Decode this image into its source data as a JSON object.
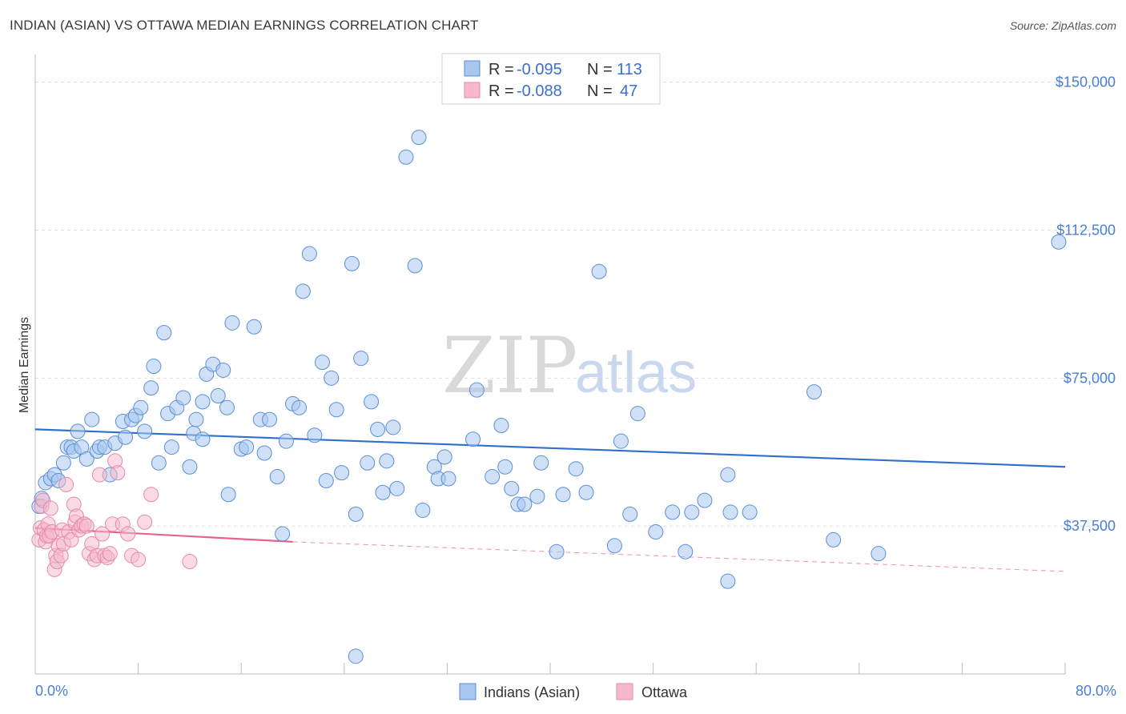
{
  "title": "INDIAN (ASIAN) VS OTTAWA MEDIAN EARNINGS CORRELATION CHART",
  "source": "Source: ZipAtlas.com",
  "watermark": {
    "zip": "ZIP",
    "atlas": "atlas"
  },
  "legend": {
    "r_label": "R =",
    "n_label": "N =",
    "rows": [
      {
        "r": "-0.095",
        "n": "113"
      },
      {
        "r": "-0.088",
        "n": "47"
      }
    ]
  },
  "bottom_legend": [
    "Indians (Asian)",
    "Ottawa"
  ],
  "colors": {
    "blue_fill": "#a8c6f0",
    "blue_stroke": "#5b8fd6",
    "blue_line": "#2f6fce",
    "pink_fill": "#f6b8cc",
    "pink_stroke": "#e58aa8",
    "pink_line": "#e8628e",
    "grid": "#dcdcdc",
    "axis_label": "#4a7fd4"
  },
  "chart_data": {
    "type": "scatter",
    "title": "INDIAN (ASIAN) VS OTTAWA MEDIAN EARNINGS CORRELATION CHART",
    "xlabel": "",
    "ylabel": "Median Earnings",
    "xlim": [
      0,
      80
    ],
    "ylim": [
      0,
      155000
    ],
    "x_tick_labels": [
      "0.0%",
      "80.0%"
    ],
    "y_ticks": [
      37500,
      75000,
      112500,
      150000
    ],
    "y_tick_labels": [
      "$37,500",
      "$75,000",
      "$112,500",
      "$150,000"
    ],
    "series": [
      {
        "name": "Indians (Asian)",
        "r": -0.095,
        "n": 113,
        "trend": {
          "x0": 0,
          "y0": 62000,
          "x1": 80,
          "y1": 52500
        },
        "points": [
          [
            0.3,
            42500
          ],
          [
            0.5,
            44500
          ],
          [
            0.8,
            48500
          ],
          [
            1.2,
            49500
          ],
          [
            1.5,
            50500
          ],
          [
            1.8,
            49000
          ],
          [
            2.2,
            53500
          ],
          [
            2.5,
            57500
          ],
          [
            2.8,
            57500
          ],
          [
            3.0,
            56500
          ],
          [
            3.3,
            61500
          ],
          [
            3.6,
            57500
          ],
          [
            4.0,
            54500
          ],
          [
            4.4,
            64500
          ],
          [
            4.8,
            56500
          ],
          [
            5.0,
            57500
          ],
          [
            5.4,
            57500
          ],
          [
            5.8,
            50500
          ],
          [
            6.2,
            58500
          ],
          [
            6.8,
            64000
          ],
          [
            7.0,
            60000
          ],
          [
            7.5,
            64500
          ],
          [
            7.8,
            65500
          ],
          [
            8.2,
            67500
          ],
          [
            8.5,
            61500
          ],
          [
            9.0,
            72500
          ],
          [
            9.2,
            78000
          ],
          [
            9.6,
            53500
          ],
          [
            10.0,
            86500
          ],
          [
            10.3,
            66000
          ],
          [
            10.6,
            57500
          ],
          [
            11.0,
            67500
          ],
          [
            11.5,
            70000
          ],
          [
            12.0,
            52500
          ],
          [
            12.3,
            61000
          ],
          [
            12.5,
            64500
          ],
          [
            13.0,
            69000
          ],
          [
            13.3,
            76000
          ],
          [
            13.8,
            78500
          ],
          [
            14.2,
            70500
          ],
          [
            14.6,
            77000
          ],
          [
            14.9,
            67500
          ],
          [
            15.3,
            89000
          ],
          [
            15.0,
            45500
          ],
          [
            16.0,
            57000
          ],
          [
            16.4,
            57500
          ],
          [
            17.0,
            88000
          ],
          [
            17.5,
            64500
          ],
          [
            17.8,
            56000
          ],
          [
            18.2,
            64500
          ],
          [
            18.8,
            50000
          ],
          [
            19.2,
            35500
          ],
          [
            19.5,
            59000
          ],
          [
            20.0,
            68500
          ],
          [
            20.5,
            67500
          ],
          [
            20.8,
            97000
          ],
          [
            21.3,
            106500
          ],
          [
            21.7,
            60500
          ],
          [
            22.3,
            79000
          ],
          [
            22.6,
            49000
          ],
          [
            23.0,
            75000
          ],
          [
            23.4,
            67000
          ],
          [
            23.8,
            51000
          ],
          [
            24.6,
            104000
          ],
          [
            24.9,
            40500
          ],
          [
            25.3,
            80000
          ],
          [
            25.8,
            53500
          ],
          [
            26.1,
            69000
          ],
          [
            26.6,
            62000
          ],
          [
            27.0,
            46000
          ],
          [
            27.3,
            54000
          ],
          [
            27.8,
            62500
          ],
          [
            28.1,
            47000
          ],
          [
            28.8,
            131000
          ],
          [
            29.5,
            103500
          ],
          [
            29.8,
            136000
          ],
          [
            30.1,
            41500
          ],
          [
            31.0,
            52500
          ],
          [
            31.3,
            49500
          ],
          [
            31.8,
            55000
          ],
          [
            32.1,
            49500
          ],
          [
            34.0,
            59500
          ],
          [
            34.3,
            72000
          ],
          [
            35.5,
            50000
          ],
          [
            36.2,
            63000
          ],
          [
            36.5,
            52500
          ],
          [
            37.0,
            47000
          ],
          [
            37.5,
            43000
          ],
          [
            38.0,
            43000
          ],
          [
            39.0,
            45000
          ],
          [
            39.3,
            53500
          ],
          [
            40.5,
            31000
          ],
          [
            41.0,
            45500
          ],
          [
            42.0,
            52000
          ],
          [
            42.8,
            46000
          ],
          [
            43.8,
            102000
          ],
          [
            45.0,
            32500
          ],
          [
            45.5,
            59000
          ],
          [
            46.2,
            40500
          ],
          [
            46.8,
            66000
          ],
          [
            48.2,
            36000
          ],
          [
            49.5,
            41000
          ],
          [
            50.5,
            31000
          ],
          [
            51.0,
            41000
          ],
          [
            52.0,
            44000
          ],
          [
            53.8,
            50500
          ],
          [
            53.8,
            23500
          ],
          [
            54.0,
            41000
          ],
          [
            55.5,
            41000
          ],
          [
            60.5,
            71500
          ],
          [
            62.0,
            34000
          ],
          [
            65.5,
            30500
          ],
          [
            79.5,
            109500
          ],
          [
            24.9,
            4500
          ],
          [
            13.0,
            59500
          ]
        ]
      },
      {
        "name": "Ottawa",
        "r": -0.088,
        "n": 47,
        "trend": {
          "x0": 0,
          "y0": 37000,
          "x1": 20,
          "y1": 33500,
          "dash_x1": 80,
          "dash_y1": 26000
        },
        "points": [
          [
            0.3,
            34000
          ],
          [
            0.4,
            37000
          ],
          [
            0.5,
            42500
          ],
          [
            0.6,
            44000
          ],
          [
            0.7,
            36500
          ],
          [
            0.8,
            33500
          ],
          [
            0.9,
            35000
          ],
          [
            1.0,
            38000
          ],
          [
            1.1,
            35000
          ],
          [
            1.2,
            42000
          ],
          [
            1.3,
            36000
          ],
          [
            1.5,
            26500
          ],
          [
            1.6,
            30000
          ],
          [
            1.7,
            28500
          ],
          [
            1.8,
            32500
          ],
          [
            2.0,
            30000
          ],
          [
            2.1,
            36500
          ],
          [
            2.2,
            33000
          ],
          [
            2.4,
            48000
          ],
          [
            2.6,
            36000
          ],
          [
            2.8,
            34000
          ],
          [
            3.0,
            43000
          ],
          [
            3.1,
            38500
          ],
          [
            3.2,
            40000
          ],
          [
            3.4,
            36500
          ],
          [
            3.6,
            37500
          ],
          [
            3.8,
            38000
          ],
          [
            4.0,
            37500
          ],
          [
            4.2,
            30500
          ],
          [
            4.4,
            33000
          ],
          [
            4.6,
            29000
          ],
          [
            4.8,
            30000
          ],
          [
            5.0,
            50500
          ],
          [
            5.2,
            35500
          ],
          [
            5.4,
            30000
          ],
          [
            5.6,
            29500
          ],
          [
            5.8,
            30500
          ],
          [
            6.0,
            38000
          ],
          [
            6.2,
            54000
          ],
          [
            6.4,
            51000
          ],
          [
            6.8,
            38000
          ],
          [
            7.2,
            35500
          ],
          [
            7.5,
            30000
          ],
          [
            8.0,
            29000
          ],
          [
            8.5,
            38500
          ],
          [
            9.0,
            45500
          ],
          [
            12.0,
            28500
          ]
        ]
      }
    ]
  }
}
